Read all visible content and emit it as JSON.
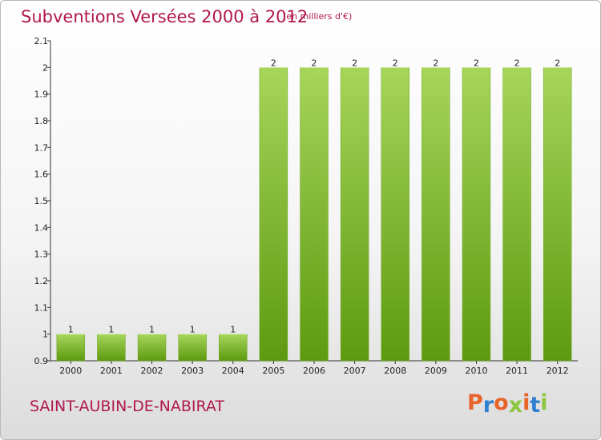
{
  "header": {
    "title": "Subventions Versées 2000 à 2012",
    "unit": "(en milliers d'€)"
  },
  "footer": {
    "commune": "SAINT-AUBIN-DE-NABIRAT",
    "logo": "Proxiti"
  },
  "colors": {
    "title": "#b0174f",
    "bar_light": "#a6d55a",
    "bar_dark": "#5e9a10",
    "logo_letters": [
      "#e8632a",
      "#2f7fd0",
      "#e8632a",
      "#8cc63f",
      "#e8632a",
      "#2f7fd0",
      "#8cc63f"
    ]
  },
  "chart_data": {
    "type": "bar",
    "title": "Subventions Versées 2000 à 2012",
    "xlabel": "",
    "ylabel": "",
    "categories": [
      "2000",
      "2001",
      "2002",
      "2003",
      "2004",
      "2005",
      "2006",
      "2007",
      "2008",
      "2009",
      "2010",
      "2011",
      "2012"
    ],
    "values": [
      1,
      1,
      1,
      1,
      1,
      2,
      2,
      2,
      2,
      2,
      2,
      2,
      2
    ],
    "data_labels": [
      "1",
      "1",
      "1",
      "1",
      "1",
      "2",
      "2",
      "2",
      "2",
      "2",
      "2",
      "2",
      "2"
    ],
    "ylim": [
      0.9,
      2.1
    ],
    "yticks": [
      0.9,
      1,
      1.1,
      1.2,
      1.3,
      1.4,
      1.5,
      1.6,
      1.7,
      1.8,
      1.9,
      2,
      2.1
    ],
    "ytick_labels": [
      "0.9",
      "1",
      "1.1",
      "1.2",
      "1.3",
      "1.4",
      "1.5",
      "1.6",
      "1.7",
      "1.8",
      "1.9",
      "2",
      "2.1"
    ],
    "grid": false,
    "legend": "none"
  }
}
